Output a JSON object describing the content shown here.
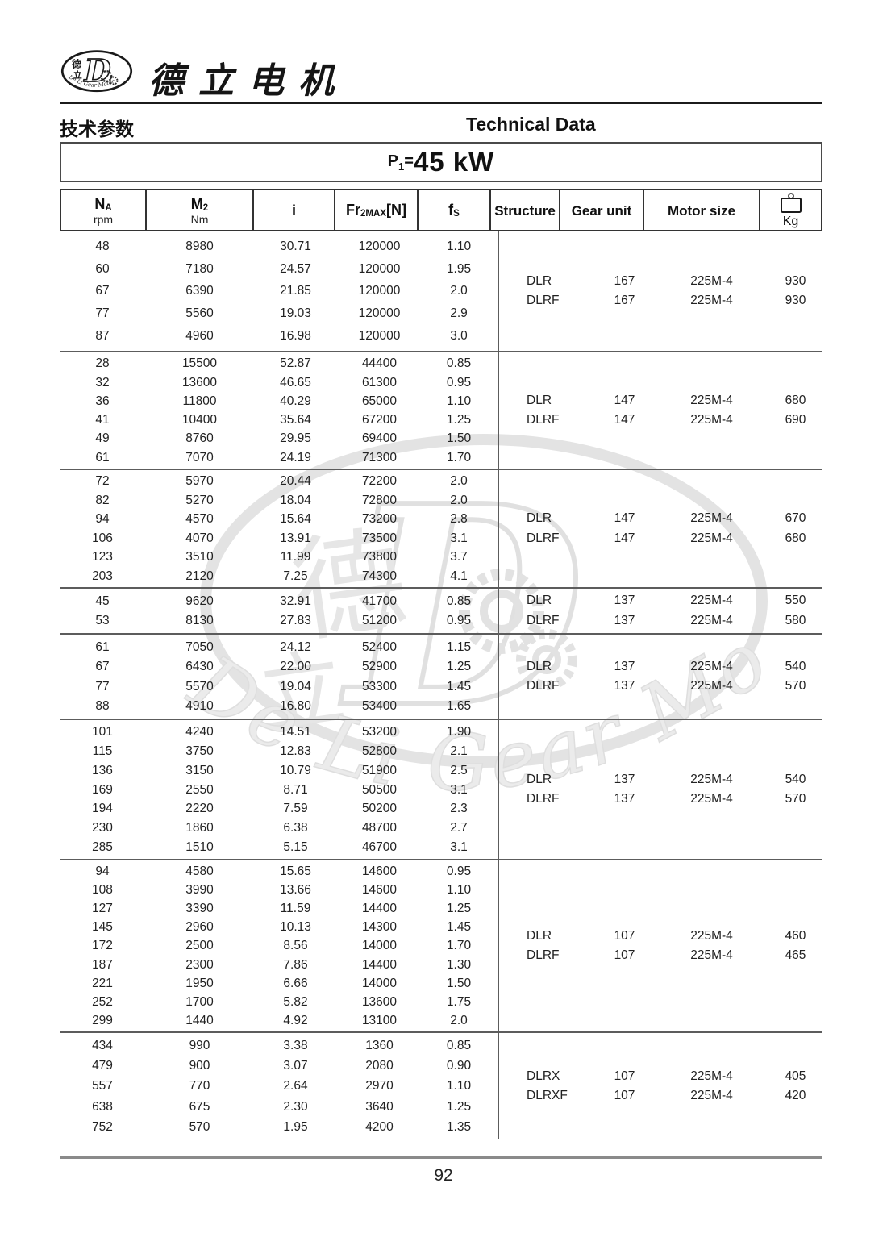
{
  "brand": {
    "company_name": "德立电机",
    "logo": {
      "cn_top": "德",
      "cn_bottom": "立",
      "letter": "D",
      "ring_text": "De Li Gear Motor"
    }
  },
  "header": {
    "title_cn": "技术参数",
    "title_en": "Technical Data",
    "power": {
      "prefix": "P",
      "sub": "1",
      "equals": "=",
      "value": "45 kW"
    }
  },
  "table": {
    "columns": [
      {
        "label": "N",
        "sub": "A",
        "suffix": "",
        "unit": "rpm"
      },
      {
        "label": "M",
        "sub": "2",
        "suffix": "",
        "unit": "Nm"
      },
      {
        "label": "i",
        "sub": "",
        "suffix": "",
        "unit": ""
      },
      {
        "label": "Fr",
        "sub": "2MAX",
        "suffix": "[N]",
        "unit": ""
      },
      {
        "label": "f",
        "sub": "S",
        "suffix": "",
        "unit": ""
      },
      {
        "label": "Structure"
      },
      {
        "label": "Gear unit"
      },
      {
        "label": "Motor size"
      },
      {
        "label": "Kg",
        "icon": "weight-icon"
      }
    ],
    "groups": [
      {
        "rows": [
          [
            "48",
            "8980",
            "30.71",
            "120000",
            "1.10"
          ],
          [
            "60",
            "7180",
            "24.57",
            "120000",
            "1.95"
          ],
          [
            "67",
            "6390",
            "21.85",
            "120000",
            "2.0"
          ],
          [
            "77",
            "5560",
            "19.03",
            "120000",
            "2.9"
          ],
          [
            "87",
            "4960",
            "16.98",
            "120000",
            "3.0"
          ]
        ],
        "structures": [
          {
            "structure": "DLR",
            "gear_unit": "167",
            "motor_size": "225M-4",
            "kg": "930"
          },
          {
            "structure": "DLRF",
            "gear_unit": "167",
            "motor_size": "225M-4",
            "kg": "930"
          }
        ]
      },
      {
        "rows": [
          [
            "28",
            "15500",
            "52.87",
            "44400",
            "0.85"
          ],
          [
            "32",
            "13600",
            "46.65",
            "61300",
            "0.95"
          ],
          [
            "36",
            "11800",
            "40.29",
            "65000",
            "1.10"
          ],
          [
            "41",
            "10400",
            "35.64",
            "67200",
            "1.25"
          ],
          [
            "49",
            "8760",
            "29.95",
            "69400",
            "1.50"
          ],
          [
            "61",
            "7070",
            "24.19",
            "71300",
            "1.70"
          ]
        ],
        "structures": [
          {
            "structure": "DLR",
            "gear_unit": "147",
            "motor_size": "225M-4",
            "kg": "680"
          },
          {
            "structure": "DLRF",
            "gear_unit": "147",
            "motor_size": "225M-4",
            "kg": "690"
          }
        ]
      },
      {
        "rows": [
          [
            "72",
            "5970",
            "20.44",
            "72200",
            "2.0"
          ],
          [
            "82",
            "5270",
            "18.04",
            "72800",
            "2.0"
          ],
          [
            "94",
            "4570",
            "15.64",
            "73200",
            "2.8"
          ],
          [
            "106",
            "4070",
            "13.91",
            "73500",
            "3.1"
          ],
          [
            "123",
            "3510",
            "11.99",
            "73800",
            "3.7"
          ],
          [
            "203",
            "2120",
            "7.25",
            "74300",
            "4.1"
          ]
        ],
        "structures": [
          {
            "structure": "DLR",
            "gear_unit": "147",
            "motor_size": "225M-4",
            "kg": "670"
          },
          {
            "structure": "DLRF",
            "gear_unit": "147",
            "motor_size": "225M-4",
            "kg": "680"
          }
        ]
      },
      {
        "rows": [
          [
            "45",
            "9620",
            "32.91",
            "41700",
            "0.85"
          ],
          [
            "53",
            "8130",
            "27.83",
            "51200",
            "0.95"
          ]
        ],
        "structures": [
          {
            "structure": "DLR",
            "gear_unit": "137",
            "motor_size": "225M-4",
            "kg": "550"
          },
          {
            "structure": "DLRF",
            "gear_unit": "137",
            "motor_size": "225M-4",
            "kg": "580"
          }
        ]
      },
      {
        "rows": [
          [
            "61",
            "7050",
            "24.12",
            "52400",
            "1.15"
          ],
          [
            "67",
            "6430",
            "22.00",
            "52900",
            "1.25"
          ],
          [
            "77",
            "5570",
            "19.04",
            "53300",
            "1.45"
          ],
          [
            "88",
            "4910",
            "16.80",
            "53400",
            "1.65"
          ]
        ],
        "structures": [
          {
            "structure": "DLR",
            "gear_unit": "137",
            "motor_size": "225M-4",
            "kg": "540"
          },
          {
            "structure": "DLRF",
            "gear_unit": "137",
            "motor_size": "225M-4",
            "kg": "570"
          }
        ]
      },
      {
        "rows": [
          [
            "101",
            "4240",
            "14.51",
            "53200",
            "1.90"
          ],
          [
            "115",
            "3750",
            "12.83",
            "52800",
            "2.1"
          ],
          [
            "136",
            "3150",
            "10.79",
            "51900",
            "2.5"
          ],
          [
            "169",
            "2550",
            "8.71",
            "50500",
            "3.1"
          ],
          [
            "194",
            "2220",
            "7.59",
            "50200",
            "2.3"
          ],
          [
            "230",
            "1860",
            "6.38",
            "48700",
            "2.7"
          ],
          [
            "285",
            "1510",
            "5.15",
            "46700",
            "3.1"
          ]
        ],
        "structures": [
          {
            "structure": "DLR",
            "gear_unit": "137",
            "motor_size": "225M-4",
            "kg": "540"
          },
          {
            "structure": "DLRF",
            "gear_unit": "137",
            "motor_size": "225M-4",
            "kg": "570"
          }
        ]
      },
      {
        "rows": [
          [
            "94",
            "4580",
            "15.65",
            "14600",
            "0.95"
          ],
          [
            "108",
            "3990",
            "13.66",
            "14600",
            "1.10"
          ],
          [
            "127",
            "3390",
            "11.59",
            "14400",
            "1.25"
          ],
          [
            "145",
            "2960",
            "10.13",
            "14300",
            "1.45"
          ],
          [
            "172",
            "2500",
            "8.56",
            "14000",
            "1.70"
          ],
          [
            "187",
            "2300",
            "7.86",
            "14400",
            "1.30"
          ],
          [
            "221",
            "1950",
            "6.66",
            "14000",
            "1.50"
          ],
          [
            "252",
            "1700",
            "5.82",
            "13600",
            "1.75"
          ],
          [
            "299",
            "1440",
            "4.92",
            "13100",
            "2.0"
          ]
        ],
        "structures": [
          {
            "structure": "DLR",
            "gear_unit": "107",
            "motor_size": "225M-4",
            "kg": "460"
          },
          {
            "structure": "DLRF",
            "gear_unit": "107",
            "motor_size": "225M-4",
            "kg": "465"
          }
        ]
      },
      {
        "rows": [
          [
            "434",
            "990",
            "3.38",
            "1360",
            "0.85"
          ],
          [
            "479",
            "900",
            "3.07",
            "2080",
            "0.90"
          ],
          [
            "557",
            "770",
            "2.64",
            "2970",
            "1.10"
          ],
          [
            "638",
            "675",
            "2.30",
            "3640",
            "1.25"
          ],
          [
            "752",
            "570",
            "1.95",
            "4200",
            "1.35"
          ]
        ],
        "structures": [
          {
            "structure": "DLRX",
            "gear_unit": "107",
            "motor_size": "225M-4",
            "kg": "405"
          },
          {
            "structure": "DLRXF",
            "gear_unit": "107",
            "motor_size": "225M-4",
            "kg": "420"
          }
        ]
      }
    ]
  },
  "watermark": {
    "letter": "D",
    "cn_top": "德",
    "cn_bottom": "立",
    "text_en": "De Li Gear Motor"
  },
  "footer": {
    "page_number": "92"
  }
}
